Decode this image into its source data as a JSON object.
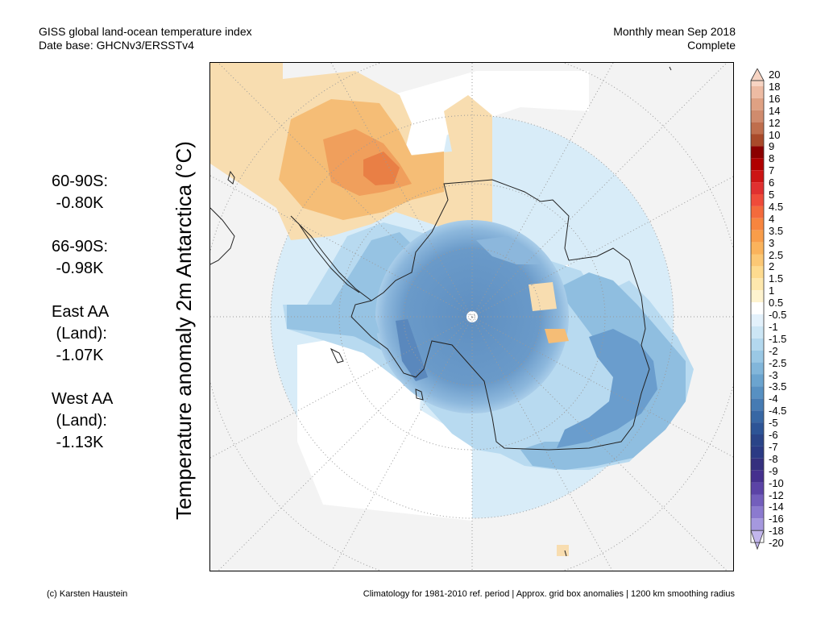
{
  "header": {
    "title": "GISS global land-ocean temperature index",
    "database": "Date base: GHCNv3/ERSSTv4",
    "period": "Monthly mean Sep 2018",
    "status": "Complete"
  },
  "vertical_title": "Temperature anomaly 2m Antarctica (°C)",
  "stats": [
    {
      "label": "60-90S:",
      "value": " -0.80K"
    },
    {
      "label": "66-90S:",
      "value": " -0.98K"
    },
    {
      "label": "East AA\n (Land):",
      "value": " -1.07K"
    },
    {
      "label": "West AA\n (Land):",
      "value": " -1.13K"
    }
  ],
  "colorbar": {
    "labels": [
      "20",
      "18",
      "16",
      "14",
      "12",
      "10",
      "9",
      "8",
      "7",
      "6",
      "5",
      "4.5",
      "4",
      "3.5",
      "3",
      "2.5",
      "2",
      "1.5",
      "1",
      "0.5",
      "-0.5",
      "-1",
      "-1.5",
      "-2",
      "-2.5",
      "-3",
      "-3.5",
      "-4",
      "-4.5",
      "-5",
      "-6",
      "-7",
      "-8",
      "-9",
      "-10",
      "-12",
      "-14",
      "-16",
      "-18",
      "-20"
    ],
    "colors": [
      "#f7d4c3",
      "#edbba3",
      "#dfa183",
      "#d08b6d",
      "#bf6e4d",
      "#a94a2a",
      "#8b0000",
      "#b00000",
      "#cc1414",
      "#e03030",
      "#ef4b3a",
      "#f46a3c",
      "#f7853f",
      "#f89d4a",
      "#fab35c",
      "#fcc875",
      "#fedb8f",
      "#fee8ad",
      "#fef3cf",
      "#ffffff",
      "#e3f1fb",
      "#cce6f5",
      "#b3d8ee",
      "#9ac8e5",
      "#82b6da",
      "#6ba4cf",
      "#5790c2",
      "#467bb3",
      "#3867a4",
      "#2d5496",
      "#2a4488",
      "#2b3a84",
      "#35307e",
      "#45308e",
      "#5b43a6",
      "#735ebc",
      "#8b7acf",
      "#a598de",
      "#c2b6ec"
    ]
  },
  "map": {
    "background": "#f3f3f3",
    "coastline_color": "#222222",
    "grid_color": "#9a9a9a"
  },
  "footer": {
    "credit": "(c) Karsten Haustein",
    "note": "Climatology for 1981-2010 ref. period | Approx. grid box anomalies | 1200 km smoothing radius"
  }
}
